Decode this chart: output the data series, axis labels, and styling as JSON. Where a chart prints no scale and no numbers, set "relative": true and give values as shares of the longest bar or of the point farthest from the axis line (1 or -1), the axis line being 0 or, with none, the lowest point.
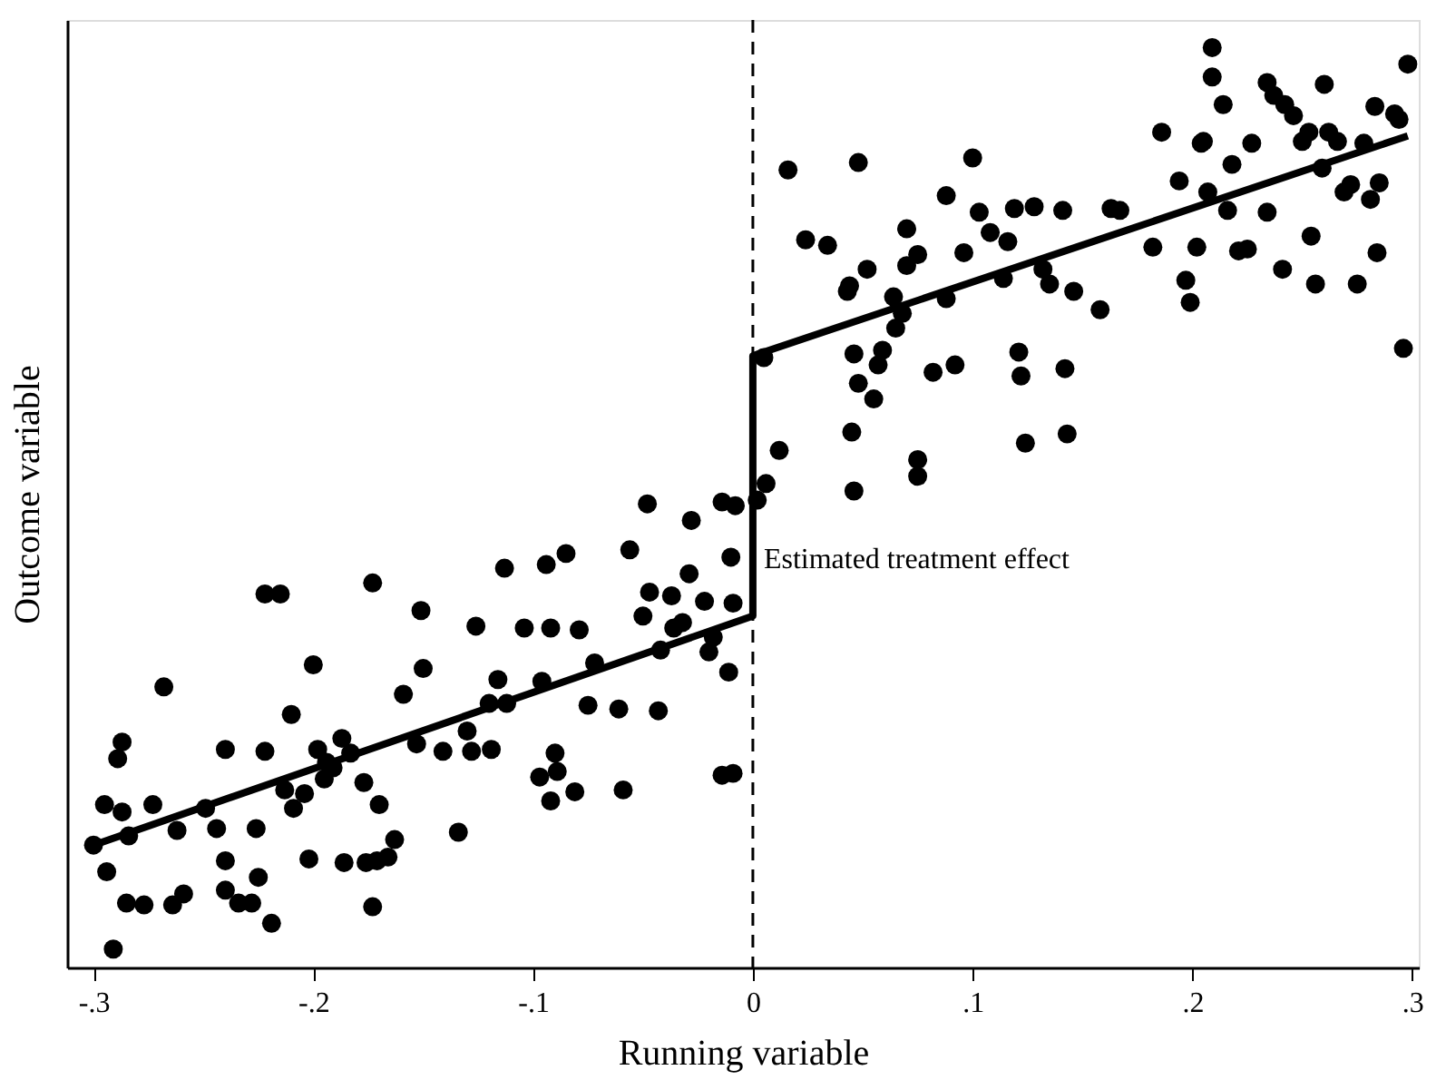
{
  "chart_data": {
    "type": "scatter",
    "xlabel": "Running variable",
    "ylabel": "Outcome variable",
    "relative": true,
    "tick_labels": "x",
    "grid": false,
    "marker": "circle",
    "xlim": [
      -0.312,
      0.303
    ],
    "xticks": [
      {
        "value": -0.3,
        "label": "-.3"
      },
      {
        "value": -0.2,
        "label": "-.2"
      },
      {
        "value": -0.1,
        "label": "-.1"
      },
      0,
      {
        "value": 0.1,
        "label": ".1"
      },
      {
        "value": 0.2,
        "label": ".2"
      },
      {
        "value": 0.3,
        "label": ".3"
      }
    ],
    "ref_lines": [
      {
        "axis": "x",
        "value": 0,
        "color": "#000000",
        "line_style": "dashed"
      }
    ],
    "annotations": [
      {
        "text": "Estimated treatment effect",
        "x": 0,
        "y": 0.444
      }
    ],
    "series": [
      {
        "color": "#000000",
        "x": [
          -0.3,
          -0.295,
          -0.294,
          -0.291,
          -0.289,
          -0.287,
          -0.287,
          -0.285,
          -0.284,
          -0.277,
          -0.273,
          -0.268,
          -0.264,
          -0.262,
          -0.259,
          -0.249,
          -0.244,
          -0.24,
          -0.24,
          -0.24,
          -0.234,
          -0.228,
          -0.226,
          -0.225,
          -0.222,
          -0.222,
          -0.215,
          -0.219,
          -0.213,
          -0.21,
          -0.209,
          -0.204,
          -0.202,
          -0.2,
          -0.198,
          -0.195,
          -0.194,
          -0.191,
          -0.187,
          -0.186,
          -0.183,
          -0.177,
          -0.176,
          -0.173,
          -0.173,
          -0.171,
          -0.17,
          -0.166,
          -0.163,
          -0.159,
          -0.153,
          -0.151,
          -0.15,
          -0.141,
          -0.134,
          -0.13,
          -0.128,
          -0.126,
          -0.12,
          -0.119,
          -0.116,
          -0.112,
          -0.113,
          -0.104,
          -0.097,
          -0.096,
          -0.094,
          -0.092,
          -0.09,
          -0.089,
          -0.092,
          -0.085,
          -0.081,
          -0.079,
          -0.075,
          -0.072,
          -0.061,
          -0.059,
          -0.056,
          -0.05,
          -0.048,
          -0.047,
          -0.043,
          -0.042,
          -0.037,
          -0.036,
          -0.032,
          -0.028,
          -0.029,
          -0.022,
          -0.02,
          -0.018,
          -0.014,
          -0.014,
          -0.01,
          -0.009,
          -0.009,
          -0.011,
          -0.008,
          0.002,
          0.005,
          0.006,
          0.012,
          0.016,
          0.024,
          0.034,
          0.043,
          0.045,
          0.046,
          0.044,
          0.048,
          0.046,
          0.048,
          0.052,
          0.055,
          0.057,
          0.059,
          0.064,
          0.065,
          0.068,
          0.07,
          0.07,
          0.075,
          0.075,
          0.075,
          0.082,
          0.088,
          0.088,
          0.092,
          0.096,
          0.1,
          0.103,
          0.108,
          0.114,
          0.116,
          0.119,
          0.121,
          0.122,
          0.124,
          0.128,
          0.132,
          0.135,
          0.141,
          0.142,
          0.143,
          0.146,
          0.158,
          0.163,
          0.167,
          0.182,
          0.186,
          0.194,
          0.197,
          0.199,
          0.202,
          0.204,
          0.205,
          0.207,
          0.209,
          0.209,
          0.214,
          0.216,
          0.218,
          0.221,
          0.225,
          0.227,
          0.234,
          0.234,
          0.237,
          0.241,
          0.242,
          0.246,
          0.25,
          0.254,
          0.253,
          0.256,
          0.26,
          0.259,
          0.262,
          0.266,
          0.269,
          0.272,
          0.275,
          0.278,
          0.281,
          0.283,
          0.284,
          0.285,
          0.292,
          0.296,
          0.298,
          0.294
        ],
        "values": [
          0.133,
          0.177,
          0.104,
          0.02,
          0.227,
          0.245,
          0.169,
          0.07,
          0.143,
          0.068,
          0.177,
          0.305,
          0.068,
          0.149,
          0.08,
          0.173,
          0.151,
          0.237,
          0.116,
          0.084,
          0.07,
          0.07,
          0.151,
          0.098,
          0.235,
          0.406,
          0.406,
          0.048,
          0.193,
          0.275,
          0.173,
          0.189,
          0.118,
          0.329,
          0.237,
          0.205,
          0.223,
          0.217,
          0.249,
          0.114,
          0.233,
          0.201,
          0.114,
          0.066,
          0.418,
          0.116,
          0.177,
          0.12,
          0.139,
          0.297,
          0.243,
          0.388,
          0.325,
          0.235,
          0.147,
          0.257,
          0.235,
          0.371,
          0.287,
          0.237,
          0.313,
          0.287,
          0.434,
          0.369,
          0.207,
          0.311,
          0.438,
          0.181,
          0.233,
          0.213,
          0.369,
          0.45,
          0.191,
          0.367,
          0.285,
          0.331,
          0.281,
          0.193,
          0.454,
          0.382,
          0.504,
          0.408,
          0.279,
          0.345,
          0.404,
          0.369,
          0.375,
          0.486,
          0.428,
          0.398,
          0.343,
          0.359,
          0.506,
          0.209,
          0.446,
          0.211,
          0.396,
          0.321,
          0.502,
          0.508,
          0.663,
          0.526,
          0.562,
          0.867,
          0.791,
          0.785,
          0.735,
          0.582,
          0.518,
          0.741,
          0.875,
          0.667,
          0.635,
          0.759,
          0.618,
          0.655,
          0.671,
          0.729,
          0.695,
          0.711,
          0.763,
          0.803,
          0.552,
          0.775,
          0.534,
          0.647,
          0.839,
          0.727,
          0.655,
          0.777,
          0.88,
          0.821,
          0.799,
          0.749,
          0.789,
          0.825,
          0.669,
          0.643,
          0.57,
          0.827,
          0.759,
          0.743,
          0.823,
          0.651,
          0.58,
          0.735,
          0.715,
          0.825,
          0.823,
          0.783,
          0.908,
          0.855,
          0.747,
          0.723,
          0.783,
          0.896,
          0.898,
          0.843,
          1.0,
          0.968,
          0.938,
          0.823,
          0.873,
          0.779,
          0.781,
          0.896,
          0.962,
          0.821,
          0.948,
          0.759,
          0.938,
          0.926,
          0.898,
          0.795,
          0.908,
          0.743,
          0.96,
          0.869,
          0.908,
          0.898,
          0.843,
          0.851,
          0.743,
          0.896,
          0.835,
          0.936,
          0.777,
          0.853,
          0.928,
          0.673,
          0.982,
          0.922
        ]
      },
      {
        "type": "line",
        "color": "#000000",
        "marker": "none",
        "line_style": "solid",
        "x": [
          -0.3,
          0,
          0,
          0.298
        ],
        "values": [
          0.133,
          0.382,
          0.665,
          0.904
        ]
      }
    ]
  }
}
